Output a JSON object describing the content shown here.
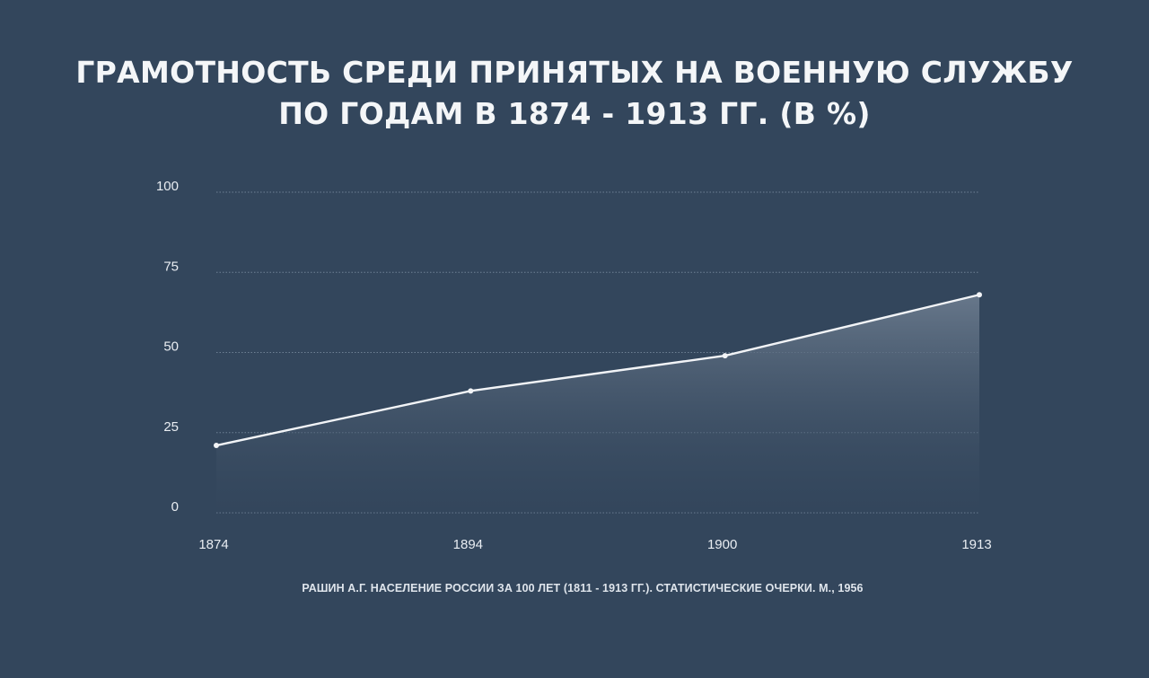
{
  "chart_data": {
    "type": "area",
    "title_lines": [
      "ГРАМОТНОСТЬ СРЕДИ ПРИНЯТЫХ НА ВОЕННУЮ СЛУЖБУ",
      "ПО ГОДАМ В 1874 - 1913 ГГ. (В %)"
    ],
    "x": [
      "1874",
      "1894",
      "1900",
      "1913"
    ],
    "values": [
      21,
      38,
      49,
      68
    ],
    "y_ticks": [
      "0",
      "25",
      "50",
      "75",
      "100"
    ],
    "ylim": [
      0,
      100
    ],
    "grid": true,
    "legend": "none",
    "source": "РАШИН А.Г. НАСЕЛЕНИЕ РОССИИ ЗА 100 ЛЕТ (1811 - 1913 ГГ.). СТАТИСТИЧЕСКИЕ ОЧЕРКИ. М., 1956"
  },
  "colors": {
    "background": "#33465c",
    "line": "#f2f4f7",
    "grid": "#7d8ea3",
    "area_top": "#6a7a8d",
    "area_bottom": "#33465c"
  }
}
